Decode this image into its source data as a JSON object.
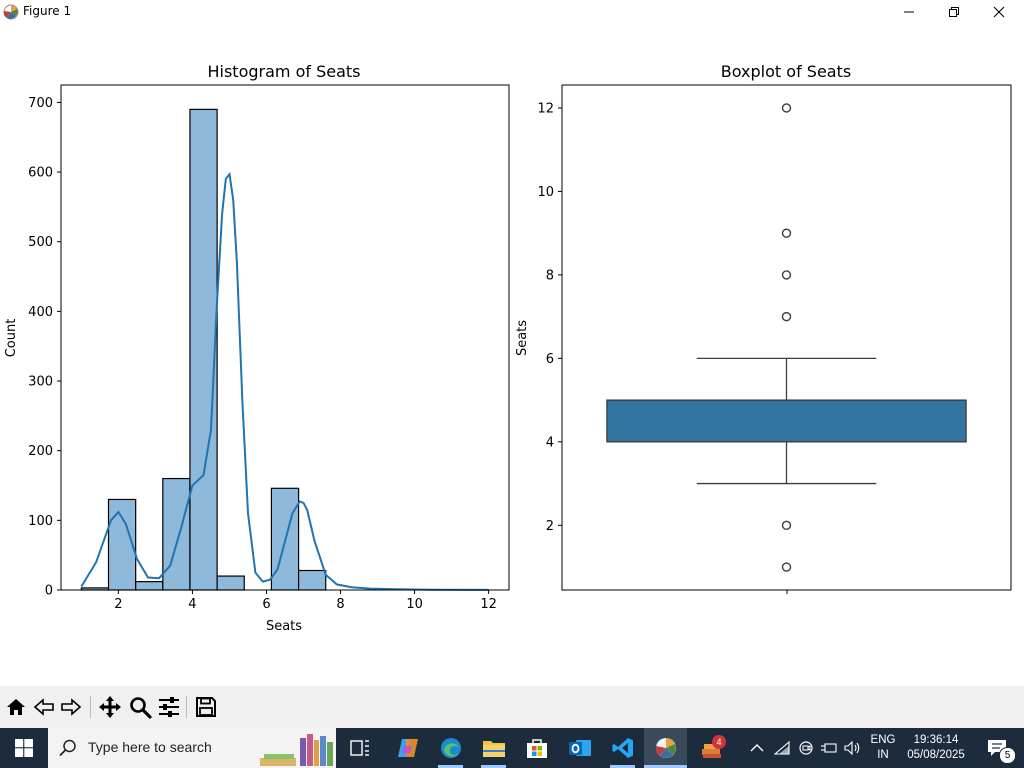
{
  "window": {
    "title": "Figure 1"
  },
  "chart_data": [
    {
      "type": "bar",
      "title": "Histogram of Seats",
      "xlabel": "Seats",
      "ylabel": "Count",
      "xlim": [
        0.45,
        12.55
      ],
      "ylim": [
        0,
        725
      ],
      "xticks": [
        2,
        4,
        6,
        8,
        10,
        12
      ],
      "yticks": [
        0,
        100,
        200,
        300,
        400,
        500,
        600,
        700
      ],
      "bin_edges": [
        1.0,
        1.733,
        2.467,
        3.2,
        3.933,
        4.667,
        5.4,
        6.133,
        6.867,
        7.6,
        8.333
      ],
      "counts": [
        3,
        130,
        12,
        160,
        690,
        20,
        0,
        146,
        28,
        0
      ],
      "bar_color": "#8fb9db",
      "edge_color": "#000000",
      "kde": {
        "color": "#2074b0",
        "x": [
          1.0,
          1.4,
          1.8,
          2.0,
          2.2,
          2.5,
          2.8,
          3.1,
          3.4,
          3.7,
          4.0,
          4.3,
          4.5,
          4.65,
          4.8,
          4.9,
          5.0,
          5.1,
          5.2,
          5.35,
          5.5,
          5.7,
          5.9,
          6.1,
          6.3,
          6.5,
          6.7,
          6.9,
          7.0,
          7.1,
          7.3,
          7.6,
          7.9,
          8.3,
          8.8,
          9.5,
          10.5,
          12.0
        ],
        "y": [
          5,
          40,
          100,
          112,
          95,
          45,
          18,
          17,
          35,
          90,
          150,
          165,
          230,
          400,
          540,
          590,
          597,
          560,
          470,
          270,
          110,
          25,
          12,
          15,
          30,
          70,
          110,
          127,
          125,
          115,
          70,
          22,
          8,
          4,
          2,
          1,
          0.5,
          0.2
        ]
      }
    },
    {
      "type": "box",
      "title": "Boxplot of Seats",
      "xlabel": "",
      "ylabel": "Seats",
      "ylim": [
        0.45,
        12.55
      ],
      "yticks": [
        2,
        4,
        6,
        8,
        10,
        12
      ],
      "q1": 4,
      "median": 5,
      "q3": 5,
      "whisker_low": 3,
      "whisker_high": 6,
      "outliers": [
        1,
        2,
        7,
        8,
        9,
        12
      ],
      "box_color": "#3274a1"
    }
  ],
  "toolbar": {
    "buttons": [
      "home-icon",
      "back-icon",
      "forward-icon",
      "pan-icon",
      "zoom-icon",
      "configure-subplots-icon",
      "save-icon"
    ]
  },
  "taskbar": {
    "search_placeholder": "Type here to search",
    "language_line1": "ENG",
    "language_line2": "IN",
    "time": "19:36:14",
    "date": "05/08/2025",
    "notification_count": "5",
    "app_badge": "4"
  }
}
